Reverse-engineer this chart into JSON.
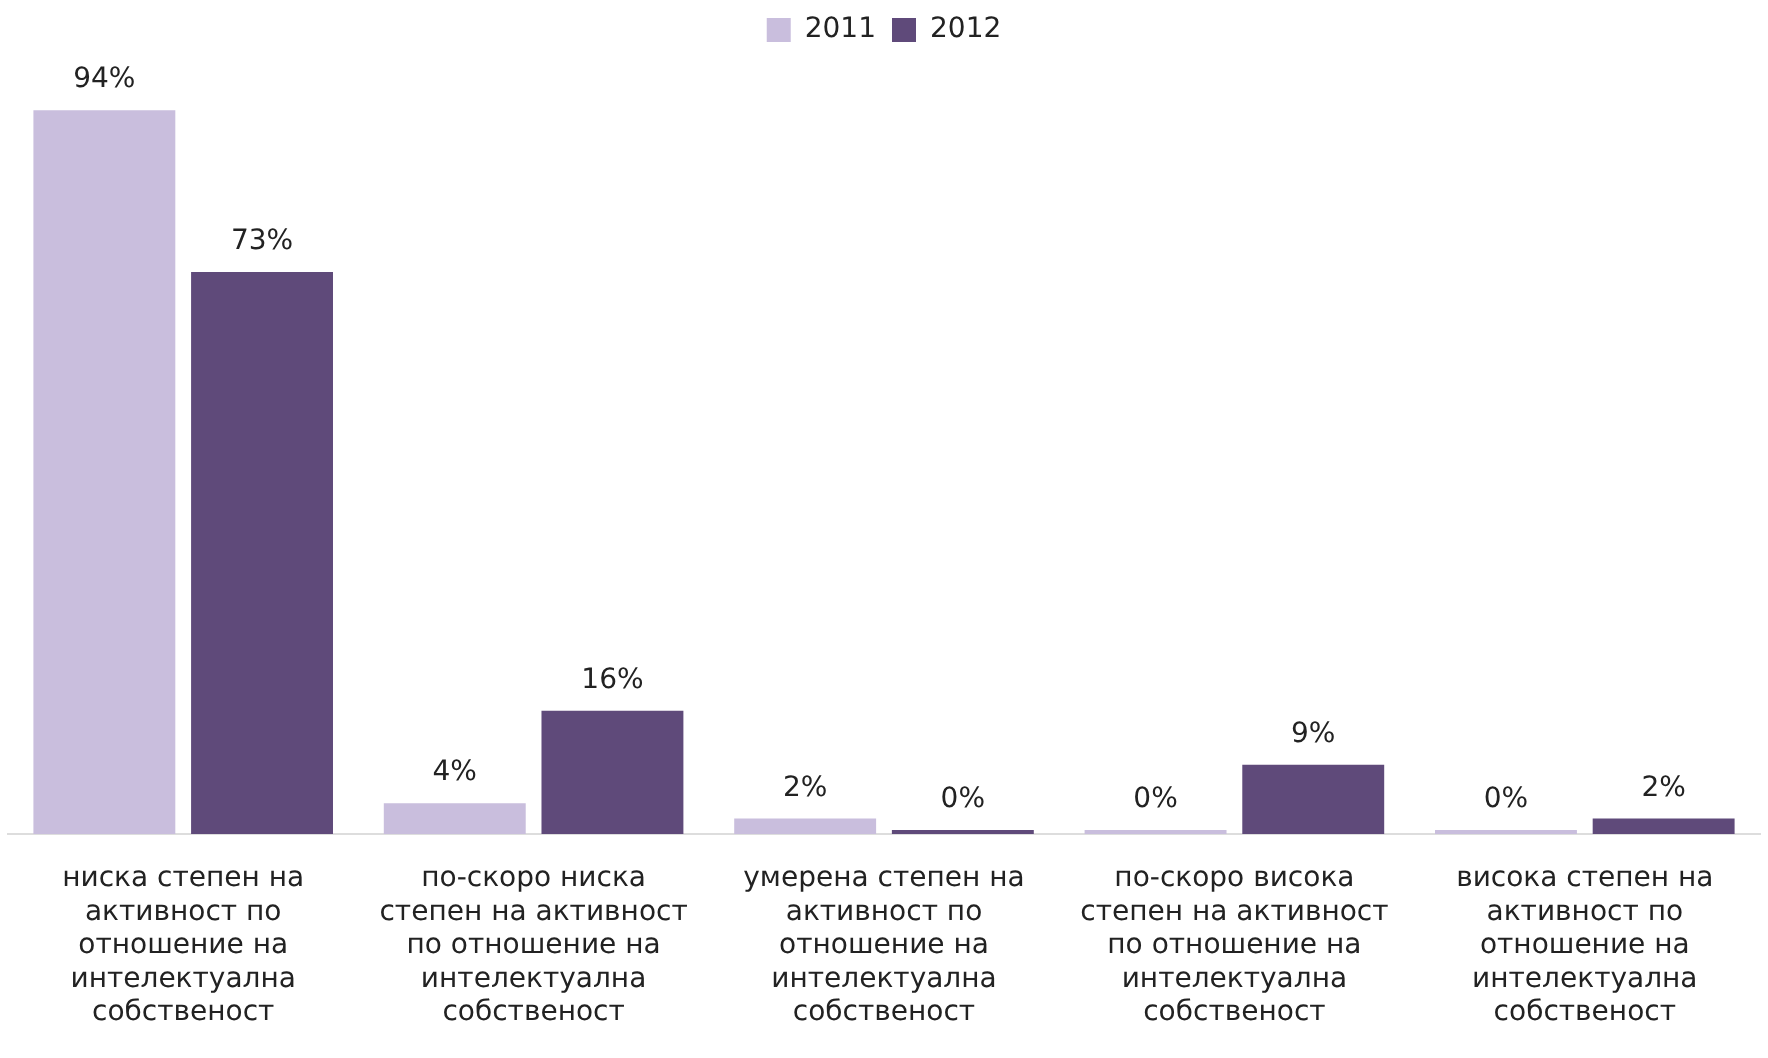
{
  "chart_data": {
    "type": "bar",
    "categories": [
      "ниска степен на активност по отношение на интелектуална собственост",
      "по-скоро ниска степен на активност по отношение на интелектуална собственост",
      "умерена степен на активност по отношение на интелектуална собственост",
      "по-скоро висока степен на активност по отношение на интелектуална собственост",
      "висока степен на активност по отношение на интелектуална собственост"
    ],
    "series": [
      {
        "name": "2011",
        "color": "#c9bedd",
        "values": [
          94,
          4,
          2,
          0,
          0
        ],
        "value_labels": [
          "94%",
          "4%",
          "2%",
          "0%",
          "0%"
        ]
      },
      {
        "name": "2012",
        "color": "#5f4a7a",
        "values": [
          73,
          16,
          0,
          9,
          2
        ],
        "value_labels": [
          "73%",
          "16%",
          "0%",
          "9%",
          "2%"
        ]
      }
    ],
    "legend": "top",
    "grid": false,
    "tick_labels": "x"
  }
}
